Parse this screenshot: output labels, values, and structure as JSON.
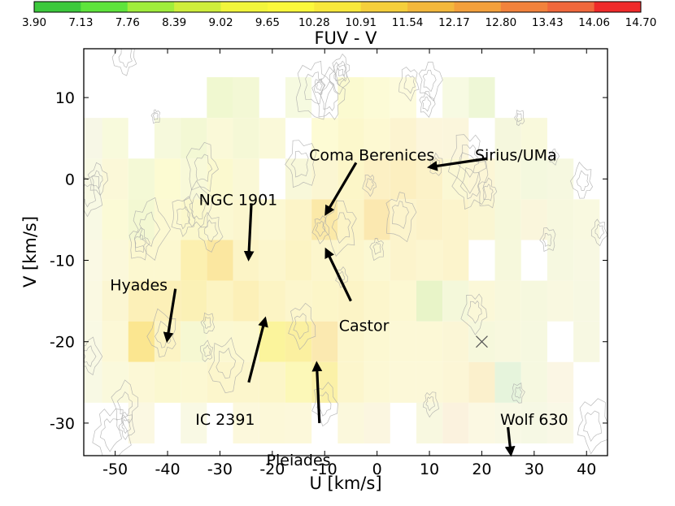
{
  "chart_data": {
    "type": "heatmap",
    "title": "",
    "colorbar": {
      "label": "FUV - V",
      "ticks": [
        "3.90",
        "7.13",
        "7.76",
        "8.39",
        "9.02",
        "9.65",
        "10.28",
        "10.91",
        "11.54",
        "12.17",
        "12.80",
        "13.43",
        "14.06",
        "14.70"
      ],
      "colors": [
        "#3cc93c",
        "#5ee43c",
        "#a0ed3c",
        "#cfee3c",
        "#f2f53c",
        "#fbf83c",
        "#f8e83c",
        "#f5cf3c",
        "#f3b83c",
        "#f3a03c",
        "#f2823c",
        "#f0683c",
        "#ef2a2a"
      ],
      "location": "top"
    },
    "xlabel": "U [km/s]",
    "ylabel": "V [km/s]",
    "xlim": [
      -56,
      44
    ],
    "ylim": [
      -34,
      16
    ],
    "xticks": [
      "-50",
      "-40",
      "-30",
      "-20",
      "-10",
      "0",
      "10",
      "20",
      "30",
      "40"
    ],
    "yticks": [
      "10",
      "0",
      "-10",
      "-20",
      "-30"
    ],
    "cell_size": 5,
    "cells": [
      {
        "u": -30,
        "v": 10,
        "c": "#f0f8d0"
      },
      {
        "u": -25,
        "v": 10,
        "c": "#f3f8d5"
      },
      {
        "u": -15,
        "v": 10,
        "c": "#f6fae0"
      },
      {
        "u": -5,
        "v": 10,
        "c": "#fbfad0"
      },
      {
        "u": 0,
        "v": 10,
        "c": "#fcfbd6"
      },
      {
        "u": 5,
        "v": 10,
        "c": "#fdfbdc"
      },
      {
        "u": 15,
        "v": 10,
        "c": "#f7fae2"
      },
      {
        "u": 20,
        "v": 10,
        "c": "#eef7d6"
      },
      {
        "u": -55,
        "v": 5,
        "c": "#f7f7e6"
      },
      {
        "u": -50,
        "v": 5,
        "c": "#f8fadc"
      },
      {
        "u": -40,
        "v": 5,
        "c": "#f6f9dc"
      },
      {
        "u": -35,
        "v": 5,
        "c": "#f3f8d4"
      },
      {
        "u": -30,
        "v": 5,
        "c": "#faf9d8"
      },
      {
        "u": -25,
        "v": 5,
        "c": "#f5f8d6"
      },
      {
        "u": -20,
        "v": 5,
        "c": "#faf9d9"
      },
      {
        "u": -10,
        "v": 5,
        "c": "#fdfbd4"
      },
      {
        "u": -5,
        "v": 5,
        "c": "#fcf8cc"
      },
      {
        "u": 0,
        "v": 5,
        "c": "#fdf9d2"
      },
      {
        "u": 5,
        "v": 5,
        "c": "#fcf4d0"
      },
      {
        "u": 10,
        "v": 5,
        "c": "#fcf6dc"
      },
      {
        "u": 15,
        "v": 5,
        "c": "#fbf6dc"
      },
      {
        "u": 25,
        "v": 5,
        "c": "#f5f7dd"
      },
      {
        "u": 30,
        "v": 5,
        "c": "#f9f9dc"
      },
      {
        "u": -55,
        "v": 0,
        "c": "#f8f9e3"
      },
      {
        "u": -50,
        "v": 0,
        "c": "#fbf8d8"
      },
      {
        "u": -45,
        "v": 0,
        "c": "#f4f9d6"
      },
      {
        "u": -40,
        "v": 0,
        "c": "#fcfbd2"
      },
      {
        "u": -35,
        "v": 0,
        "c": "#f8f9d8"
      },
      {
        "u": -30,
        "v": 0,
        "c": "#fbf9cf"
      },
      {
        "u": -25,
        "v": 0,
        "c": "#faf8d6"
      },
      {
        "u": -15,
        "v": 0,
        "c": "#f8f8da"
      },
      {
        "u": -10,
        "v": 0,
        "c": "#fbf6d2"
      },
      {
        "u": -5,
        "v": 0,
        "c": "#fcf6c8"
      },
      {
        "u": 0,
        "v": 0,
        "c": "#fcf0c4"
      },
      {
        "u": 5,
        "v": 0,
        "c": "#fcefc0"
      },
      {
        "u": 10,
        "v": 0,
        "c": "#fcf2c8"
      },
      {
        "u": 15,
        "v": 0,
        "c": "#fbf8d4"
      },
      {
        "u": 20,
        "v": 0,
        "c": "#fcf6d6"
      },
      {
        "u": 25,
        "v": 0,
        "c": "#f8f8dc"
      },
      {
        "u": 30,
        "v": 0,
        "c": "#f4f8de"
      },
      {
        "u": 35,
        "v": 0,
        "c": "#f6f8e0"
      },
      {
        "u": -55,
        "v": -5,
        "c": "#f8f9e4"
      },
      {
        "u": -50,
        "v": -5,
        "c": "#fbfad6"
      },
      {
        "u": -45,
        "v": -5,
        "c": "#f3f8d2"
      },
      {
        "u": -40,
        "v": -5,
        "c": "#fcf9d2"
      },
      {
        "u": -35,
        "v": -5,
        "c": "#fbf8cc"
      },
      {
        "u": -30,
        "v": -5,
        "c": "#fbf8d2"
      },
      {
        "u": -25,
        "v": -5,
        "c": "#fbf6ce"
      },
      {
        "u": -20,
        "v": -5,
        "c": "#fcf8d2"
      },
      {
        "u": -15,
        "v": -5,
        "c": "#fcf4c8"
      },
      {
        "u": -10,
        "v": -5,
        "c": "#fbe9a8"
      },
      {
        "u": -5,
        "v": -5,
        "c": "#fcf4c6"
      },
      {
        "u": 0,
        "v": -5,
        "c": "#fbe8b0"
      },
      {
        "u": 5,
        "v": -5,
        "c": "#fcf4cc"
      },
      {
        "u": 10,
        "v": -5,
        "c": "#fcf2c8"
      },
      {
        "u": 15,
        "v": -5,
        "c": "#fcf4cc"
      },
      {
        "u": 20,
        "v": -5,
        "c": "#faf6d2"
      },
      {
        "u": 25,
        "v": -5,
        "c": "#f6f8da"
      },
      {
        "u": 30,
        "v": -5,
        "c": "#faf6dc"
      },
      {
        "u": 35,
        "v": -5,
        "c": "#f7f8de"
      },
      {
        "u": 40,
        "v": -5,
        "c": "#f9f9e0"
      },
      {
        "u": -55,
        "v": -10,
        "c": "#faf9e4"
      },
      {
        "u": -50,
        "v": -10,
        "c": "#fbf8da"
      },
      {
        "u": -45,
        "v": -10,
        "c": "#fcf8d0"
      },
      {
        "u": -40,
        "v": -10,
        "c": "#fcf8d0"
      },
      {
        "u": -35,
        "v": -10,
        "c": "#fcf0b0"
      },
      {
        "u": -30,
        "v": -10,
        "c": "#fbe7a0"
      },
      {
        "u": -25,
        "v": -10,
        "c": "#fcf4c6"
      },
      {
        "u": -20,
        "v": -10,
        "c": "#fcf6cc"
      },
      {
        "u": -15,
        "v": -10,
        "c": "#fcf4c4"
      },
      {
        "u": -10,
        "v": -10,
        "c": "#fcf6cc"
      },
      {
        "u": -5,
        "v": -10,
        "c": "#fcf6cc"
      },
      {
        "u": 0,
        "v": -10,
        "c": "#fbf8d2"
      },
      {
        "u": 5,
        "v": -10,
        "c": "#fcf4cc"
      },
      {
        "u": 10,
        "v": -10,
        "c": "#fcf6d0"
      },
      {
        "u": 15,
        "v": -10,
        "c": "#fcf4cc"
      },
      {
        "u": 25,
        "v": -10,
        "c": "#f6f8dc"
      },
      {
        "u": 35,
        "v": -10,
        "c": "#f6f8e0"
      },
      {
        "u": 40,
        "v": -10,
        "c": "#f8f8e2"
      },
      {
        "u": -55,
        "v": -15,
        "c": "#faf9e2"
      },
      {
        "u": -50,
        "v": -15,
        "c": "#fbf6d2"
      },
      {
        "u": -45,
        "v": -15,
        "c": "#fcf0b8"
      },
      {
        "u": -40,
        "v": -15,
        "c": "#fcf0b8"
      },
      {
        "u": -35,
        "v": -15,
        "c": "#fbf1b6"
      },
      {
        "u": -30,
        "v": -15,
        "c": "#fcf4c2"
      },
      {
        "u": -25,
        "v": -15,
        "c": "#fcf0b8"
      },
      {
        "u": -20,
        "v": -15,
        "c": "#fcf4c4"
      },
      {
        "u": -15,
        "v": -15,
        "c": "#fcf6cc"
      },
      {
        "u": -10,
        "v": -15,
        "c": "#fcf6c8"
      },
      {
        "u": -5,
        "v": -15,
        "c": "#fcf4c6"
      },
      {
        "u": 0,
        "v": -15,
        "c": "#fcf6cc"
      },
      {
        "u": 5,
        "v": -15,
        "c": "#fcf8d2"
      },
      {
        "u": 10,
        "v": -15,
        "c": "#e8f4c8"
      },
      {
        "u": 15,
        "v": -15,
        "c": "#f4f8da"
      },
      {
        "u": 20,
        "v": -15,
        "c": "#fbf8d8"
      },
      {
        "u": 25,
        "v": -15,
        "c": "#f8f8dc"
      },
      {
        "u": 30,
        "v": -15,
        "c": "#f6f8de"
      },
      {
        "u": 35,
        "v": -15,
        "c": "#f9f8e0"
      },
      {
        "u": 40,
        "v": -15,
        "c": "#f7f8e2"
      },
      {
        "u": -55,
        "v": -20,
        "c": "#f9f9e4"
      },
      {
        "u": -50,
        "v": -20,
        "c": "#fcf8d6"
      },
      {
        "u": -45,
        "v": -20,
        "c": "#fbe690"
      },
      {
        "u": -40,
        "v": -20,
        "c": "#fcf4c4"
      },
      {
        "u": -35,
        "v": -20,
        "c": "#f6f8d2"
      },
      {
        "u": -30,
        "v": -20,
        "c": "#fbf8d2"
      },
      {
        "u": -25,
        "v": -20,
        "c": "#fcf8d0"
      },
      {
        "u": -20,
        "v": -20,
        "c": "#fbf49c"
      },
      {
        "u": -15,
        "v": -20,
        "c": "#fbf0a0"
      },
      {
        "u": -10,
        "v": -20,
        "c": "#fbe9b0"
      },
      {
        "u": -5,
        "v": -20,
        "c": "#fcf6cc"
      },
      {
        "u": 0,
        "v": -20,
        "c": "#fcf8d2"
      },
      {
        "u": 5,
        "v": -20,
        "c": "#fcf8d6"
      },
      {
        "u": 10,
        "v": -20,
        "c": "#fcf8d6"
      },
      {
        "u": 15,
        "v": -20,
        "c": "#fbf6d6"
      },
      {
        "u": 20,
        "v": -20,
        "c": "#f6f8dc"
      },
      {
        "u": 25,
        "v": -20,
        "c": "#f8f8de"
      },
      {
        "u": 30,
        "v": -20,
        "c": "#f6f8e0"
      },
      {
        "u": 40,
        "v": -20,
        "c": "#f7f8e2"
      },
      {
        "u": -55,
        "v": -25,
        "c": "#f8f9e4"
      },
      {
        "u": -50,
        "v": -25,
        "c": "#faf9dc"
      },
      {
        "u": -45,
        "v": -25,
        "c": "#fcf8d6"
      },
      {
        "u": -40,
        "v": -25,
        "c": "#fbf8d0"
      },
      {
        "u": -35,
        "v": -25,
        "c": "#fcf8d2"
      },
      {
        "u": -30,
        "v": -25,
        "c": "#fcf6cc"
      },
      {
        "u": -25,
        "v": -25,
        "c": "#fcf6cc"
      },
      {
        "u": -20,
        "v": -25,
        "c": "#fcf6c8"
      },
      {
        "u": -15,
        "v": -25,
        "c": "#fcf8b8"
      },
      {
        "u": -10,
        "v": -25,
        "c": "#fbf1a8"
      },
      {
        "u": -5,
        "v": -25,
        "c": "#fcf6cc"
      },
      {
        "u": 0,
        "v": -25,
        "c": "#fcf8d4"
      },
      {
        "u": 5,
        "v": -25,
        "c": "#fcf8d8"
      },
      {
        "u": 10,
        "v": -25,
        "c": "#fcf8d8"
      },
      {
        "u": 15,
        "v": -25,
        "c": "#fcf6d6"
      },
      {
        "u": 20,
        "v": -25,
        "c": "#fbf0cc"
      },
      {
        "u": 25,
        "v": -25,
        "c": "#e6f4dc"
      },
      {
        "u": 30,
        "v": -25,
        "c": "#f6f8e0"
      },
      {
        "u": 35,
        "v": -25,
        "c": "#fbf6e4"
      },
      {
        "u": -45,
        "v": -30,
        "c": "#fbf8e2"
      },
      {
        "u": -35,
        "v": -30,
        "c": "#f9f9e4"
      },
      {
        "u": -25,
        "v": -30,
        "c": "#fcf8dc"
      },
      {
        "u": -20,
        "v": -30,
        "c": "#fcf8d8"
      },
      {
        "u": -15,
        "v": -30,
        "c": "#fcf8da"
      },
      {
        "u": -5,
        "v": -30,
        "c": "#fbf8dc"
      },
      {
        "u": 0,
        "v": -30,
        "c": "#fbf6e0"
      },
      {
        "u": 10,
        "v": -30,
        "c": "#f8f8e0"
      },
      {
        "u": 15,
        "v": -30,
        "c": "#fbf2de"
      },
      {
        "u": 20,
        "v": -30,
        "c": "#fbf8e2"
      },
      {
        "u": 25,
        "v": -30,
        "c": "#f8f8e4"
      },
      {
        "u": 30,
        "v": -30,
        "c": "#f6f8e4"
      },
      {
        "u": 35,
        "v": -30,
        "c": "#f9f8e6"
      }
    ],
    "annotations": [
      {
        "text": "Coma Berenices",
        "text_u": -1,
        "text_v": 3,
        "arrow_from": [
          -4,
          2
        ],
        "arrow_to": [
          -9.5,
          -4
        ]
      },
      {
        "text": "Sirius/UMa",
        "text_u": 26.5,
        "text_v": 3,
        "arrow_from": [
          21,
          2.5
        ],
        "arrow_to": [
          10.5,
          1.5
        ]
      },
      {
        "text": "NGC 1901",
        "text_u": -26.5,
        "text_v": -2.5,
        "arrow_from": [
          -24,
          -3
        ],
        "arrow_to": [
          -24.5,
          -9.5
        ]
      },
      {
        "text": "Hyades",
        "text_u": -45.5,
        "text_v": -13,
        "arrow_from": [
          -38.5,
          -13.5
        ],
        "arrow_to": [
          -40,
          -19.5
        ]
      },
      {
        "text": "Castor",
        "text_u": -2.5,
        "text_v": -18,
        "arrow_from": [
          -5,
          -15
        ],
        "arrow_to": [
          -9.5,
          -9
        ]
      },
      {
        "text": "IC 2391",
        "text_u": -29,
        "text_v": -29.5,
        "arrow_from": [
          -24.5,
          -25
        ],
        "arrow_to": [
          -21.5,
          -17.5
        ]
      },
      {
        "text": "Pleiades",
        "text_u": -15,
        "text_v": -34.5,
        "arrow_from": [
          -11,
          -30
        ],
        "arrow_to": [
          -11.5,
          -23
        ]
      },
      {
        "text": "Wolf 630",
        "text_u": 30,
        "text_v": -29.5,
        "arrow_from": [
          25,
          -30.5
        ],
        "arrow_to": [
          25.5,
          -33.5
        ]
      }
    ],
    "marker": {
      "symbol": "x",
      "u": 20,
      "v": -20
    },
    "grid": false
  }
}
